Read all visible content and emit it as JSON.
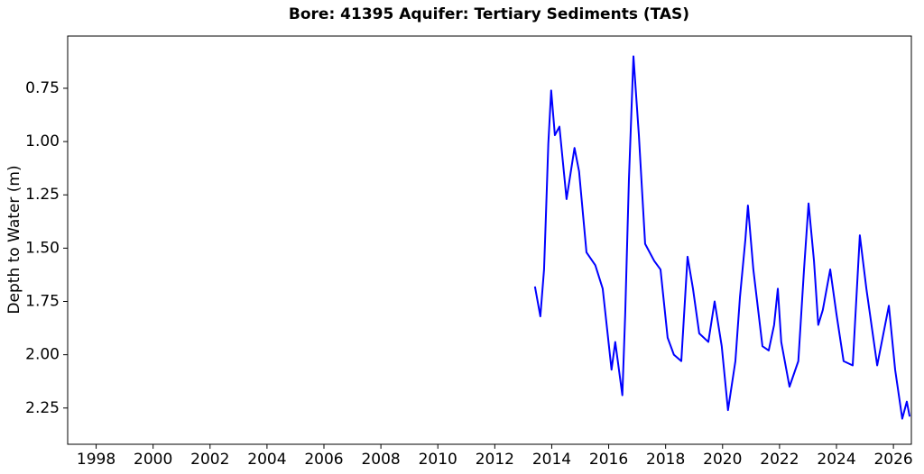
{
  "chart_data": {
    "type": "line",
    "title": "Bore: 41395  Aquifer: Tertiary Sediments (TAS)",
    "y_label": "Depth to Water (m)",
    "xlim": [
      1997.0,
      2026.63
    ],
    "xticks": [
      1998,
      2000,
      2002,
      2004,
      2006,
      2008,
      2010,
      2012,
      2014,
      2016,
      2018,
      2020,
      2022,
      2024,
      2026
    ],
    "ylim": [
      2.42,
      0.505
    ],
    "yticks": [
      {
        "value": 0.75,
        "label": "0.75"
      },
      {
        "value": 1.0,
        "label": "1.00"
      },
      {
        "value": 1.25,
        "label": "1.25"
      },
      {
        "value": 1.5,
        "label": "1.50"
      },
      {
        "value": 1.75,
        "label": "1.75"
      },
      {
        "value": 2.0,
        "label": "2.00"
      },
      {
        "value": 2.25,
        "label": "2.25"
      }
    ],
    "series": [
      {
        "color": "#0000ff",
        "x": [
          2013.41,
          2013.6,
          2013.73,
          2013.79,
          2013.88,
          2013.98,
          2014.11,
          2014.27,
          2014.52,
          2014.8,
          2014.96,
          2015.22,
          2015.53,
          2015.79,
          2016.1,
          2016.23,
          2016.48,
          2016.58,
          2016.71,
          2016.87,
          2017.06,
          2017.28,
          2017.6,
          2017.82,
          2018.07,
          2018.29,
          2018.55,
          2018.77,
          2018.96,
          2019.18,
          2019.5,
          2019.72,
          2019.97,
          2020.19,
          2020.45,
          2020.61,
          2020.8,
          2020.89,
          2021.08,
          2021.4,
          2021.62,
          2021.81,
          2021.94,
          2022.06,
          2022.35,
          2022.66,
          2022.86,
          2023.02,
          2023.21,
          2023.36,
          2023.52,
          2023.78,
          2024.0,
          2024.25,
          2024.57,
          2024.82,
          2025.05,
          2025.43,
          2025.84,
          2026.06,
          2026.31,
          2026.47,
          2026.57
        ],
        "values": [
          1.68,
          1.82,
          1.6,
          1.37,
          1.01,
          0.76,
          0.97,
          0.93,
          1.27,
          1.03,
          1.14,
          1.52,
          1.58,
          1.69,
          2.07,
          1.94,
          2.19,
          1.81,
          1.18,
          0.6,
          0.97,
          1.48,
          1.56,
          1.6,
          1.92,
          2.0,
          2.03,
          1.54,
          1.69,
          1.9,
          1.94,
          1.75,
          1.96,
          2.26,
          2.03,
          1.73,
          1.46,
          1.3,
          1.6,
          1.96,
          1.98,
          1.86,
          1.69,
          1.94,
          2.15,
          2.03,
          1.6,
          1.29,
          1.56,
          1.86,
          1.79,
          1.6,
          1.81,
          2.03,
          2.05,
          1.44,
          1.69,
          2.05,
          1.77,
          2.07,
          2.3,
          2.22,
          2.29
        ]
      }
    ]
  }
}
